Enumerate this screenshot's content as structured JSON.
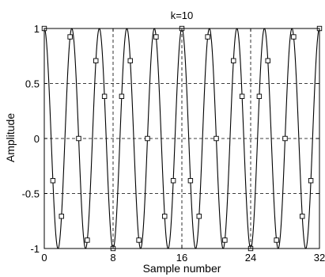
{
  "chart_data": {
    "type": "line",
    "title": "k=10",
    "xlabel": "Sample number",
    "ylabel": "Amplitude",
    "xlim": [
      0,
      32
    ],
    "ylim": [
      -1,
      1
    ],
    "xticks": [
      0,
      8,
      16,
      24,
      32
    ],
    "xtick_labels": [
      "0",
      "8",
      "16",
      "24",
      "32"
    ],
    "yticks": [
      -1,
      -0.5,
      0,
      0.5,
      1
    ],
    "ytick_labels": [
      "-1",
      "-0.5",
      "0",
      "0.5",
      "1"
    ],
    "grid": true,
    "series": [
      {
        "style": "line",
        "function": "cos(2*pi*10*n/32)",
        "n_range": [
          0,
          32
        ],
        "color": "#000000"
      },
      {
        "style": "square-markers",
        "color": "#000000",
        "x": [
          0,
          1,
          2,
          3,
          4,
          5,
          6,
          7,
          8,
          9,
          10,
          11,
          12,
          13,
          14,
          15,
          16,
          17,
          18,
          19,
          20,
          21,
          22,
          23,
          24,
          25,
          26,
          27,
          28,
          29,
          30,
          31,
          32
        ],
        "y": [
          1,
          -0.383,
          -0.707,
          0.924,
          0,
          -0.924,
          0.707,
          0.383,
          -1,
          0.383,
          0.707,
          -0.924,
          0,
          0.924,
          -0.707,
          -0.383,
          1,
          -0.383,
          -0.707,
          0.924,
          0,
          -0.924,
          0.707,
          0.383,
          -1,
          0.383,
          0.707,
          -0.924,
          0,
          0.924,
          -0.707,
          -0.383,
          1
        ]
      }
    ]
  }
}
